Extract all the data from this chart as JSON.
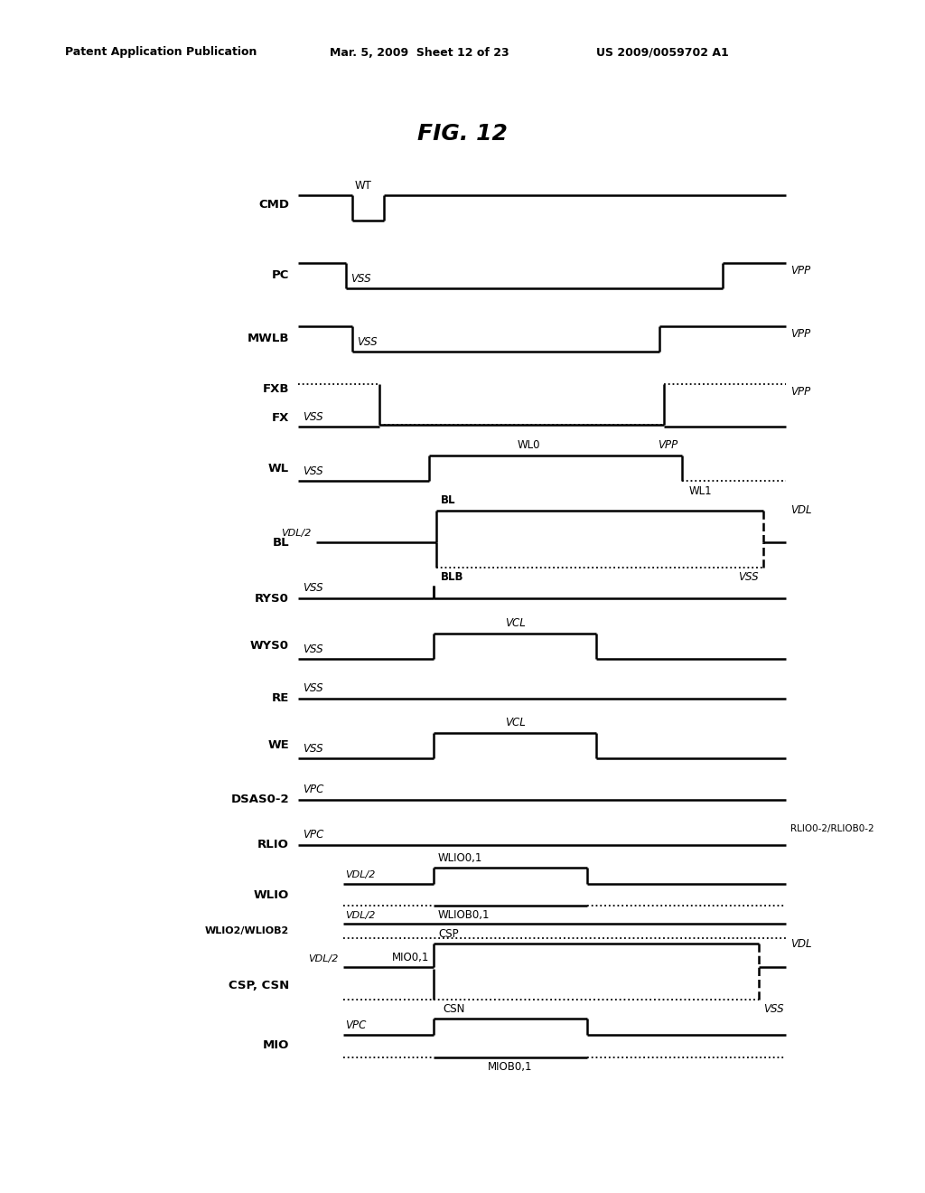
{
  "title": "FIG. 12",
  "header_left": "Patent Application Publication",
  "header_mid": "Mar. 5, 2009  Sheet 12 of 23",
  "header_right": "US 2009/0059702 A1",
  "bg": "#ffffff",
  "lw": 1.8,
  "dlw": 1.3,
  "fs_signal": 8.5,
  "fs_label": 9.5,
  "fs_title": 18,
  "fs_header": 9
}
